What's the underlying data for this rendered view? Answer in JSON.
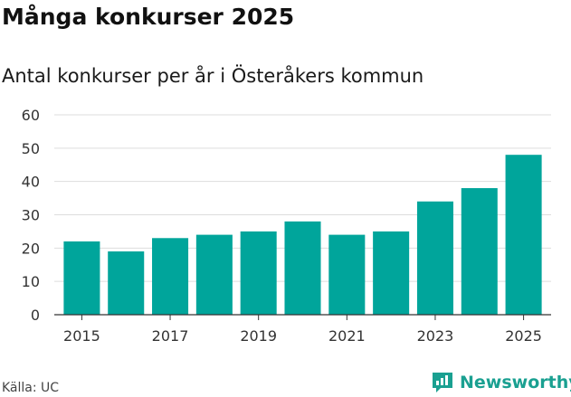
{
  "header": {
    "title": "Många konkurser 2025",
    "subtitle": "Antal konkurser per år i Österåkers kommun"
  },
  "footer": {
    "source": "Källa: UC",
    "brand": "Newsworthy"
  },
  "colors": {
    "bar": "#00a59b",
    "grid": "#dddddd",
    "brand": "#1aa091"
  },
  "icons": {
    "logo": "bar-chart-speech-bubble-icon"
  },
  "chart_data": {
    "type": "bar",
    "categories": [
      "2015",
      "2016",
      "2017",
      "2018",
      "2019",
      "2020",
      "2021",
      "2022",
      "2023",
      "2024",
      "2025"
    ],
    "values": [
      22,
      19,
      23,
      24,
      25,
      28,
      24,
      25,
      34,
      38,
      48
    ],
    "x_tick_labels": [
      "2015",
      "",
      "2017",
      "",
      "2019",
      "",
      "2021",
      "",
      "2023",
      "",
      "2025"
    ],
    "y_ticks": [
      0,
      10,
      20,
      30,
      40,
      50,
      60
    ],
    "ylim": [
      0,
      60
    ],
    "grid": true,
    "legend": "none"
  }
}
